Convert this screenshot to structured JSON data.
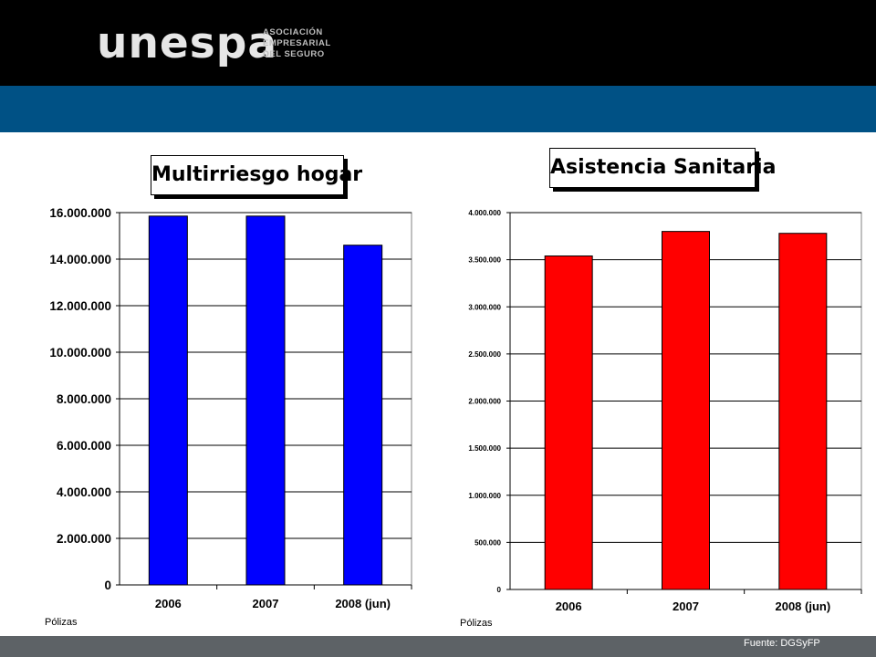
{
  "header": {
    "logo_wordmark": "unespa",
    "logo_lines": [
      "ASOCIACIÓN",
      "EMPRESARIAL",
      "DEL SEGURO"
    ]
  },
  "footer": {
    "source": "Fuente: DGSyFP"
  },
  "colors": {
    "header": "#000000",
    "band": "#005185",
    "footer": "#5d6266",
    "left_bars": "#0000ff",
    "right_bars": "#ff0000"
  },
  "chart_data": [
    {
      "type": "bar",
      "title": "Multirriesgo hogar",
      "ylabel": "Pólizas",
      "categories": [
        "2006",
        "2007",
        "2008 (jun)"
      ],
      "values": [
        15850000,
        15850000,
        14600000
      ],
      "ylim": [
        0,
        16000000
      ],
      "yticks": [
        0,
        2000000,
        4000000,
        6000000,
        8000000,
        10000000,
        12000000,
        14000000,
        16000000
      ],
      "ytick_labels": [
        "0",
        "2.000.000",
        "4.000.000",
        "6.000.000",
        "8.000.000",
        "10.000.000",
        "12.000.000",
        "14.000.000",
        "16.000.000"
      ],
      "grid": true,
      "bar_color": "#0000ff"
    },
    {
      "type": "bar",
      "title": "Asistencia Sanitaria",
      "ylabel": "Pólizas",
      "categories": [
        "2006",
        "2007",
        "2008 (jun)"
      ],
      "values": [
        3540000,
        3800000,
        3780000
      ],
      "ylim": [
        0,
        4000000
      ],
      "yticks": [
        0,
        500000,
        1000000,
        1500000,
        2000000,
        2500000,
        3000000,
        3500000,
        4000000
      ],
      "ytick_labels": [
        "0",
        "500.000",
        "1.000.000",
        "1.500.000",
        "2.000.000",
        "2.500.000",
        "3.000.000",
        "3.500.000",
        "4.000.000"
      ],
      "grid": true,
      "bar_color": "#ff0000"
    }
  ]
}
